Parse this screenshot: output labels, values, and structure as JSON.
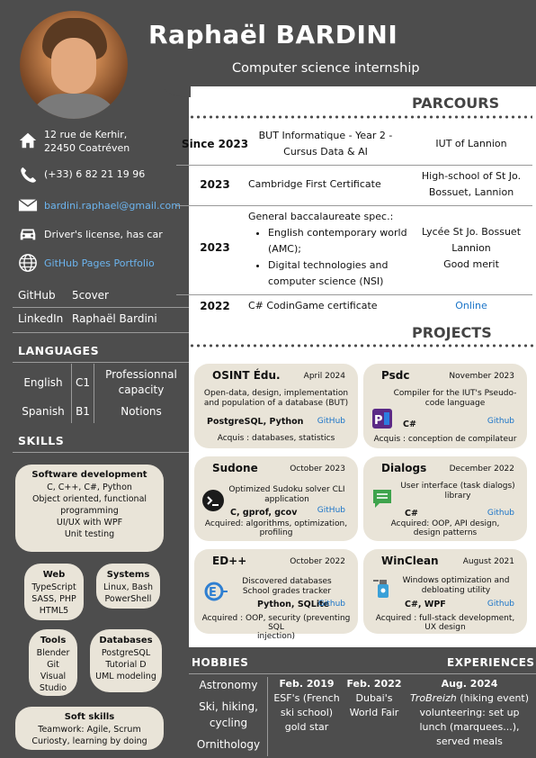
{
  "header": {
    "name": "Raphaël BARDINI",
    "subtitle": "Computer science internship"
  },
  "contact": {
    "address_line1": "12 rue de Kerhir,",
    "address_line2": "22450 Coatréven",
    "phone": "(+33) 6 82 21 19 96",
    "email": "bardini.raphael@gmail.com",
    "license": "Driver's license, has car",
    "portfolio": "GitHub Pages Portfolio",
    "github_label": "GitHub",
    "github_value": "5cover",
    "linkedin_label": "LinkedIn",
    "linkedin_value": "Raphaël Bardini"
  },
  "languages": {
    "title": "LANGUAGES",
    "rows": [
      {
        "lang": "English",
        "level": "C1",
        "desc": "Professionnal capacity"
      },
      {
        "lang": "Spanish",
        "level": "B1",
        "desc": "Notions"
      }
    ]
  },
  "skills": {
    "title": "SKILLS",
    "software": {
      "title": "Software development",
      "lines": [
        "C, C++, C#, Python",
        "Object oriented, functional",
        "programming",
        "UI/UX with WPF",
        "Unit testing"
      ]
    },
    "web": {
      "title": "Web",
      "lines": [
        "TypeScript",
        "SASS, PHP",
        "HTML5"
      ]
    },
    "systems": {
      "title": "Systems",
      "lines": [
        "Linux, Bash",
        "PowerShell"
      ]
    },
    "tools": {
      "title": "Tools",
      "lines": [
        "Blender",
        "Git",
        "Visual",
        "Studio"
      ]
    },
    "databases": {
      "title": "Databases",
      "lines": [
        "PostgreSQL",
        "Tutorial D",
        "UML modeling"
      ]
    },
    "soft": {
      "title": "Soft skills",
      "lines": [
        "Teamwork: Agile, Scrum",
        "Curiosty, learning by doing"
      ]
    }
  },
  "parcours": {
    "title": "PARCOURS",
    "rows": [
      {
        "year": "Since 2023",
        "desc": [
          "BUT Informatique - Year 2 -",
          "Cursus Data & AI"
        ],
        "where": [
          "IUT of Lannion"
        ]
      },
      {
        "year": "2023",
        "desc": [
          "Cambridge First Certificate"
        ],
        "where": [
          "High-school of St Jo.",
          "Bossuet, Lannion"
        ]
      },
      {
        "year": "2023",
        "desc_intro": "General baccalaureate spec.:",
        "bullets": [
          [
            "English contemporary world",
            "(AMC);"
          ],
          [
            "Digital technologies and",
            "computer science (NSI)"
          ]
        ],
        "where": [
          "Lycée St Jo. Bossuet",
          "Lannion",
          "Good merit"
        ]
      },
      {
        "year": "2022",
        "desc": [
          "C# CodinGame certificate"
        ],
        "where_link": "Online"
      }
    ]
  },
  "projects": {
    "title": "PROJECTS",
    "cards": [
      {
        "title": "OSINT Édu.",
        "date": "April 2024",
        "desc": [
          "Open-data, design, implementation",
          "and population of a database (BUT)"
        ],
        "tech": "PostgreSQL, Python",
        "git": "GitHub",
        "acq": [
          "Acquis : databases, statistics"
        ]
      },
      {
        "title": "Psdc",
        "date": "November 2023",
        "desc": [
          "Compiler for the IUT's Pseudo-",
          "code language"
        ],
        "tech": "C#",
        "git": "Github",
        "acq": [
          "Acquis : conception de compilateur"
        ]
      },
      {
        "title": "Sudone",
        "date": "October 2023",
        "desc": [
          "Optimized Sudoku solver CLI",
          "application"
        ],
        "tech": "C, gprof, gcov",
        "git": "GitHub",
        "acq": [
          "Acquired: algorithms, optimization,",
          "profiling"
        ]
      },
      {
        "title": "Dialogs",
        "date": "December 2022",
        "desc": [
          "User interface (task dialogs)",
          "library"
        ],
        "tech": "C#",
        "git": "Github",
        "acq": [
          "Acquired: OOP, API design,",
          "design patterns"
        ]
      },
      {
        "title": "ED++",
        "date": "October 2022",
        "desc": [
          "Discovered databases",
          "School grades tracker"
        ],
        "tech": "Python, SQLite",
        "git": "Github",
        "acq": [
          "Acquired : OOP, security (preventing SQL",
          "injection)"
        ]
      },
      {
        "title": "WinClean",
        "date": "August 2021",
        "desc": [
          "Windows optimization and",
          "debloating utility"
        ],
        "tech": "C#, WPF",
        "git": "Github",
        "acq": [
          "Acquired : full-stack development,",
          "UX design"
        ]
      }
    ]
  },
  "hobbies": {
    "title": "HOBBIES",
    "items": [
      "Astronomy",
      "Ski, hiking,",
      "cycling",
      "Ornithology"
    ]
  },
  "experiences": {
    "title": "EXPERIENCES",
    "items": [
      {
        "date": "Feb. 2019",
        "lines": [
          "ESF's (French",
          "ski school)",
          "gold star"
        ]
      },
      {
        "date": "Feb. 2022",
        "lines": [
          "Dubai's",
          "World Fair"
        ]
      },
      {
        "date": "Aug. 2024",
        "italic": "TroBreizh",
        "rest": " (hiking event)",
        "lines": [
          "volunteering: set up",
          "lunch (marquees...),",
          "served meals"
        ]
      }
    ]
  },
  "colors": {
    "dark": "#4d4d4d",
    "card": "#e9e4d8",
    "link": "#6cb4ee",
    "git": "#1a74c8"
  }
}
